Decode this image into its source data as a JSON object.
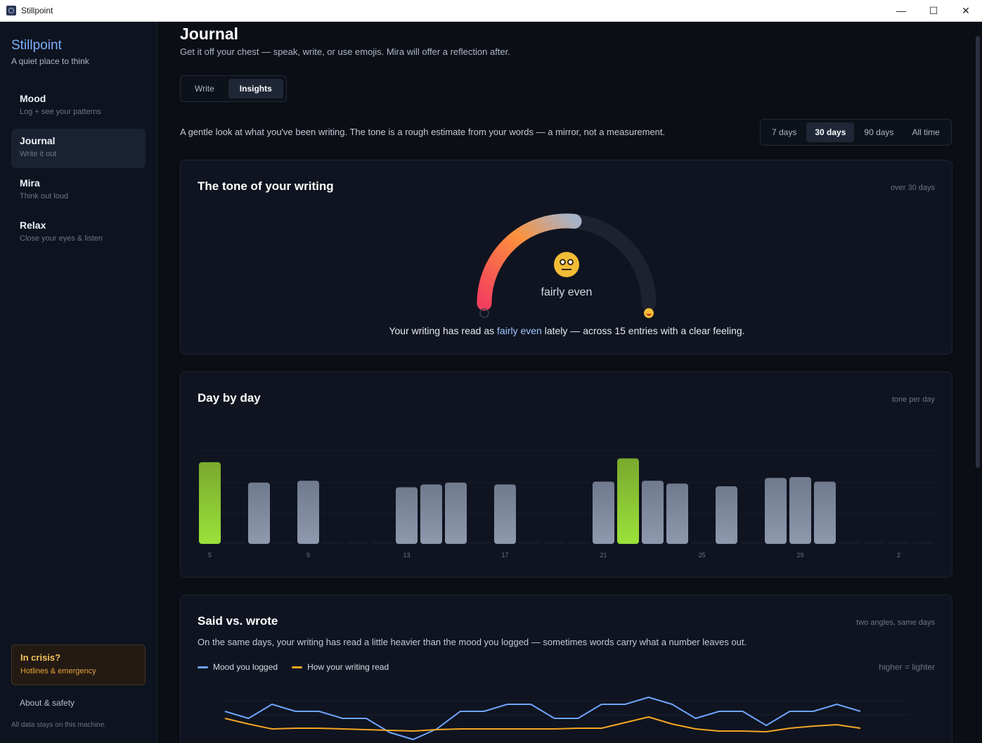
{
  "window": {
    "title": "Stillpoint",
    "minimize": "—",
    "maximize": "☐",
    "close": "✕"
  },
  "sidebar": {
    "brand": "Stillpoint",
    "tagline": "A quiet place to think",
    "items": [
      {
        "label": "Mood",
        "sub": "Log + see your patterns",
        "active": false
      },
      {
        "label": "Journal",
        "sub": "Write it out",
        "active": true
      },
      {
        "label": "Mira",
        "sub": "Think out loud",
        "active": false
      },
      {
        "label": "Relax",
        "sub": "Close your eyes & listen",
        "active": false
      }
    ],
    "crisis": {
      "title": "In crisis?",
      "sub": "Hotlines & emergency"
    },
    "about": "About & safety",
    "local": "All data stays on this machine."
  },
  "main": {
    "title": "Journal",
    "subtitle": "Get it off your chest — speak, write, or use emojis. Mira will offer a reflection after.",
    "tabs": [
      {
        "label": "Write",
        "active": false
      },
      {
        "label": "Insights",
        "active": true
      }
    ],
    "intro": "A gentle look at what you've been writing. The tone is a rough estimate from your words — a mirror, not a measurement.",
    "ranges": [
      {
        "label": "7 days",
        "active": false
      },
      {
        "label": "30 days",
        "active": true
      },
      {
        "label": "90 days",
        "active": false
      },
      {
        "label": "All time",
        "active": false
      }
    ]
  },
  "tone": {
    "title": "The tone of your writing",
    "meta": "over 30 days",
    "value": 0.53,
    "word": "fairly even",
    "summary_pre": "Your writing has read as ",
    "summary_hl": "fairly even",
    "summary_post": " lately — across 15 entries with a clear feeling.",
    "colors": {
      "low": "#f43f5e",
      "mid": "#fb923c",
      "high": "#a8b3c7",
      "track": "#1c2230"
    }
  },
  "daily": {
    "title": "Day by day",
    "meta": "tone per day",
    "chart_data": {
      "type": "bar",
      "categories": [
        "5",
        "6",
        "7",
        "8",
        "9",
        "10",
        "11",
        "12",
        "13",
        "14",
        "15",
        "16",
        "17",
        "18",
        "19",
        "20",
        "21",
        "22",
        "23",
        "24",
        "25",
        "26",
        "27",
        "28",
        "29",
        "30",
        "31",
        "1",
        "2",
        "3"
      ],
      "values": [
        0.88,
        null,
        0.66,
        null,
        0.68,
        null,
        null,
        null,
        0.61,
        0.64,
        0.66,
        null,
        0.64,
        null,
        null,
        null,
        0.67,
        0.92,
        0.68,
        0.65,
        null,
        0.62,
        null,
        0.71,
        0.72,
        0.67,
        null,
        null,
        null,
        null
      ],
      "highlight": [
        0,
        17
      ],
      "tick_labels": [
        "5",
        "9",
        "13",
        "17",
        "21",
        "25",
        "29",
        "2"
      ],
      "ylim": [
        0,
        1
      ],
      "colors": {
        "bar": "#8a94a8",
        "highlight": "#9be23a",
        "empty": "#151a25"
      }
    }
  },
  "said": {
    "title": "Said vs. wrote",
    "meta": "two angles, same days",
    "desc": "On the same days, your writing has read a little heavier than the mood you logged — sometimes words carry what a number leaves out.",
    "hint": "higher = lighter",
    "chart_data": {
      "type": "line",
      "x": [
        1,
        2,
        3,
        4,
        5,
        6,
        7,
        8,
        9,
        10,
        11,
        12,
        13,
        14,
        15,
        16,
        17,
        18,
        19,
        20,
        21,
        22,
        23,
        24,
        25,
        26,
        27,
        28
      ],
      "series": [
        {
          "name": "Mood you logged",
          "color": "#6ea4ff",
          "values": [
            0.6,
            0.5,
            0.7,
            0.6,
            0.6,
            0.5,
            0.5,
            0.3,
            0.2,
            0.35,
            0.6,
            0.6,
            0.7,
            0.7,
            0.5,
            0.5,
            0.7,
            0.7,
            0.8,
            0.7,
            0.5,
            0.6,
            0.6,
            0.4,
            0.6,
            0.6,
            0.7,
            0.6
          ]
        },
        {
          "name": "How your writing read",
          "color": "#f5a623",
          "values": [
            0.5,
            0.42,
            0.35,
            0.36,
            0.36,
            0.35,
            0.34,
            0.33,
            0.32,
            0.34,
            0.35,
            0.35,
            0.35,
            0.35,
            0.35,
            0.36,
            0.36,
            0.44,
            0.52,
            0.42,
            0.35,
            0.32,
            0.32,
            0.31,
            0.36,
            0.39,
            0.41,
            0.36
          ]
        }
      ],
      "ylim": [
        0,
        1
      ]
    }
  }
}
